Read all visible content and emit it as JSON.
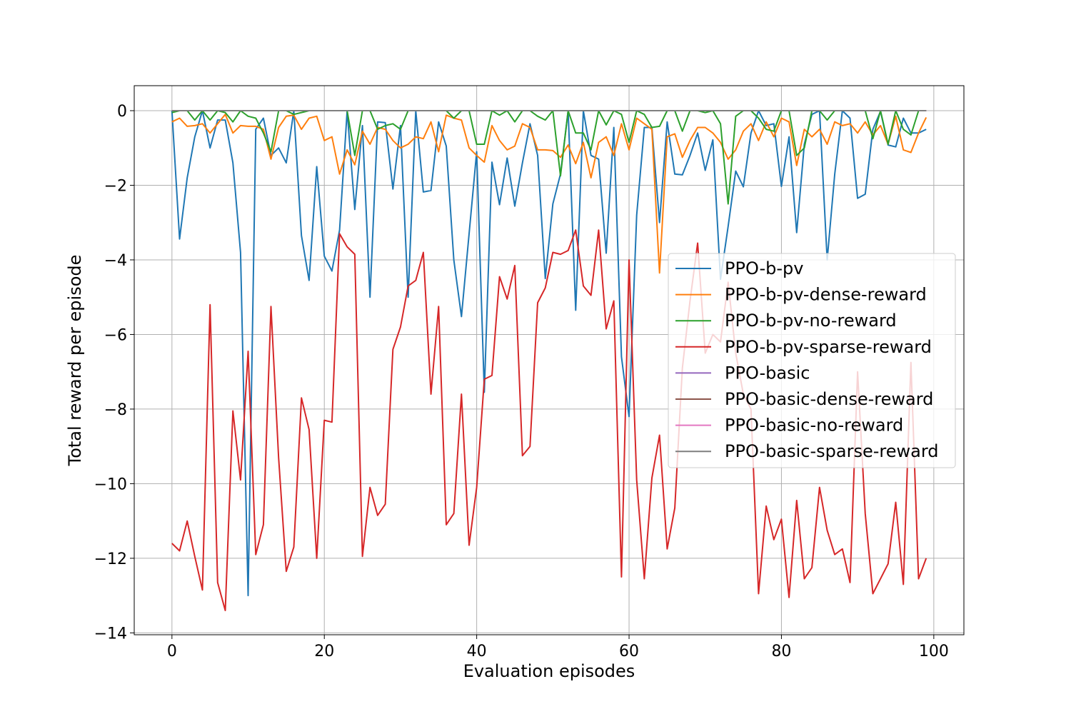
{
  "chart_data": {
    "type": "line",
    "title": "",
    "xlabel": "Evaluation episodes",
    "ylabel": "Total reward per episode",
    "xlim": [
      -4.95,
      103.95
    ],
    "ylim": [
      -14.05,
      0.67
    ],
    "xticks": [
      0,
      20,
      40,
      60,
      80,
      100
    ],
    "yticks": [
      0,
      -2,
      -4,
      -6,
      -8,
      -10,
      -12,
      -14
    ],
    "xtick_labels": [
      "0",
      "20",
      "40",
      "60",
      "80",
      "100"
    ],
    "ytick_labels": [
      "0",
      "−2",
      "−4",
      "−6",
      "−8",
      "−10",
      "−12",
      "−14"
    ],
    "grid": true,
    "legend_position": "center-right",
    "series": [
      {
        "name": "PPO-b-pv",
        "color": "#1f77b4",
        "values": [
          0,
          -3.44,
          -1.8,
          -0.7,
          0,
          -1.0,
          -0.25,
          -0.25,
          -1.4,
          -3.8,
          -13.0,
          -0.5,
          -0.2,
          -1.2,
          -1.0,
          -1.4,
          0,
          -3.35,
          -4.55,
          -1.5,
          -3.9,
          -4.3,
          -3.2,
          0,
          -2.65,
          -0.4,
          -5.0,
          -0.3,
          -0.32,
          -2.1,
          -0.4,
          -5.0,
          0,
          -2.18,
          -2.14,
          -0.3,
          -0.95,
          -4.0,
          -5.52,
          -3.3,
          -1.1,
          -7.55,
          -1.38,
          -2.52,
          -1.27,
          -2.56,
          -1.4,
          -0.35,
          -1.2,
          -4.5,
          -2.5,
          -1.7,
          0,
          -5.35,
          0,
          -1.2,
          -1.3,
          -3.82,
          -0.45,
          -6.6,
          -8.2,
          -2.8,
          -0.45,
          -0.45,
          -3.0,
          -0.3,
          -1.7,
          -1.72,
          -1.2,
          -0.6,
          -1.6,
          -0.78,
          -4.52,
          -3.1,
          -1.62,
          -2.04,
          -0.6,
          0,
          -0.4,
          -0.35,
          -2.03,
          -0.7,
          -3.27,
          -0.9,
          -0.1,
          0,
          -4.0,
          -1.7,
          0,
          -0.2,
          -2.35,
          -2.24,
          -0.5,
          -0.02,
          -0.92,
          -0.97,
          -0.2,
          -0.6,
          -0.6,
          -0.5
        ]
      },
      {
        "name": "PPO-b-pv-dense-reward",
        "color": "#ff7f0e",
        "values": [
          -0.3,
          -0.2,
          -0.42,
          -0.4,
          -0.35,
          -0.6,
          -0.35,
          -0.1,
          -0.6,
          -0.4,
          -0.42,
          -0.42,
          -0.5,
          -1.3,
          -0.45,
          -0.15,
          -0.12,
          -0.5,
          -0.2,
          -0.15,
          -0.8,
          -0.7,
          -1.7,
          -1.05,
          -1.45,
          -0.55,
          -0.9,
          -0.45,
          -0.5,
          -0.8,
          -1.0,
          -0.9,
          -0.7,
          -0.75,
          -0.3,
          -1.1,
          -0.12,
          -0.2,
          -0.25,
          -1.0,
          -1.2,
          -1.38,
          -0.4,
          -0.8,
          -1.05,
          -0.95,
          -0.35,
          -0.45,
          -1.05,
          -1.05,
          -1.07,
          -1.25,
          -0.92,
          -1.42,
          -0.85,
          -1.8,
          -0.85,
          -0.7,
          -1.2,
          -0.35,
          -1.05,
          -0.2,
          -0.35,
          -0.5,
          -4.35,
          -0.7,
          -0.62,
          -1.25,
          -0.8,
          -0.45,
          -0.45,
          -0.6,
          -0.85,
          -1.3,
          -1.05,
          -0.55,
          -0.35,
          -0.8,
          -0.3,
          -0.7,
          -0.2,
          -0.3,
          -1.47,
          -0.5,
          -0.7,
          -0.5,
          -0.9,
          -0.3,
          -0.4,
          -0.35,
          -0.6,
          -0.3,
          -0.65,
          -0.4,
          -0.9,
          -0.15,
          -1.05,
          -1.12,
          -0.6,
          -0.18
        ]
      },
      {
        "name": "PPO-b-pv-no-reward",
        "color": "#2ca02c",
        "values": [
          -0.05,
          0,
          0,
          -0.25,
          0,
          -0.25,
          0,
          -0.05,
          -0.3,
          0,
          -0.15,
          -0.2,
          -0.6,
          -1.1,
          0,
          0,
          -0.1,
          -0.05,
          0,
          0,
          0,
          0,
          0,
          0,
          -1.2,
          0,
          0,
          -0.5,
          -0.4,
          -0.35,
          -0.5,
          0,
          0,
          0,
          0,
          0,
          0,
          -0.2,
          0,
          0,
          -0.9,
          -0.9,
          0,
          -0.12,
          0,
          -0.3,
          0,
          0,
          -0.15,
          -0.25,
          0,
          -1.75,
          0,
          -0.6,
          -0.6,
          -1.05,
          0,
          -0.38,
          0,
          -0.1,
          -0.85,
          0,
          -0.1,
          -0.45,
          -0.42,
          0,
          0,
          -0.55,
          0,
          0,
          -0.05,
          0,
          -0.35,
          -2.5,
          -0.15,
          0,
          0,
          -0.2,
          -0.5,
          -0.55,
          0,
          0,
          -1.2,
          -1.0,
          0,
          0,
          -0.25,
          0,
          0,
          0,
          0,
          0,
          -0.75,
          0,
          -0.9,
          0,
          -0.5,
          -0.65,
          0,
          0
        ]
      },
      {
        "name": "PPO-b-pv-sparse-reward",
        "color": "#d62728",
        "values": [
          -11.6,
          -11.8,
          -11.0,
          -11.95,
          -12.85,
          -5.2,
          -12.65,
          -13.4,
          -8.05,
          -9.9,
          -6.45,
          -11.9,
          -11.1,
          -5.25,
          -9.3,
          -12.35,
          -11.7,
          -7.7,
          -8.55,
          -12.0,
          -8.3,
          -8.35,
          -3.3,
          -3.65,
          -3.85,
          -11.95,
          -10.1,
          -10.85,
          -10.55,
          -6.4,
          -5.8,
          -4.7,
          -4.55,
          -3.8,
          -7.6,
          -5.25,
          -11.1,
          -10.8,
          -7.6,
          -11.65,
          -10.1,
          -7.2,
          -7.1,
          -4.45,
          -5.05,
          -4.15,
          -9.25,
          -9.0,
          -5.15,
          -4.75,
          -3.8,
          -3.85,
          -3.75,
          -3.2,
          -4.7,
          -4.95,
          -3.2,
          -5.85,
          -5.1,
          -12.5,
          -4.0,
          -9.9,
          -12.55,
          -9.85,
          -8.7,
          -11.75,
          -10.65,
          -6.9,
          -5.1,
          -3.55,
          -6.5,
          -6.0,
          -6.2,
          -4.6,
          -6.5,
          -7.6,
          -8.0,
          -12.95,
          -10.6,
          -11.5,
          -10.95,
          -13.05,
          -10.45,
          -12.55,
          -12.25,
          -10.1,
          -11.25,
          -11.9,
          -11.75,
          -12.65,
          -7.0,
          -10.8,
          -12.95,
          -12.55,
          -12.15,
          -10.5,
          -12.7,
          -6.75,
          -12.55,
          -12.0
        ]
      },
      {
        "name": "PPO-basic",
        "color": "#9467bd",
        "values": [
          0,
          0
        ]
      },
      {
        "name": "PPO-basic-dense-reward",
        "color": "#8c564b",
        "values": [
          0,
          0
        ]
      },
      {
        "name": "PPO-basic-no-reward",
        "color": "#e377c2",
        "values": [
          0,
          0
        ]
      },
      {
        "name": "PPO-basic-sparse-reward",
        "color": "#7f7f7f",
        "values": [
          0,
          0
        ]
      }
    ]
  }
}
